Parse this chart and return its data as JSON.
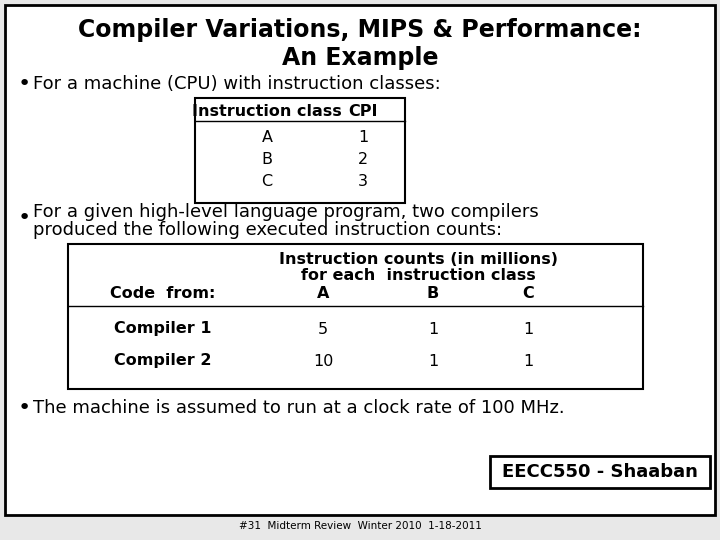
{
  "title_line1": "Compiler Variations, MIPS & Performance:",
  "title_line2": "An Example",
  "bullet1": "For a machine (CPU) with instruction classes:",
  "table1_headers": [
    "Instruction class",
    "CPI"
  ],
  "table1_rows": [
    [
      "A",
      "1"
    ],
    [
      "B",
      "2"
    ],
    [
      "C",
      "3"
    ]
  ],
  "bullet2_line1": "For a given high-level language program, two compilers",
  "bullet2_line2": "produced the following executed instruction counts:",
  "table2_header1": "Instruction counts (in millions)",
  "table2_header2": "for each  instruction class",
  "table2_col_headers": [
    "Code  from:",
    "A",
    "B",
    "C"
  ],
  "table2_rows": [
    [
      "Compiler 1",
      "5",
      "1",
      "1"
    ],
    [
      "Compiler 2",
      "10",
      "1",
      "1"
    ]
  ],
  "bullet3": "The machine is assumed to run at a clock rate of 100 MHz.",
  "footer": "EECC550 - Shaaban",
  "footnote": "#31  Midterm Review  Winter 2010  1-18-2011",
  "bg_color": "#e8e8e8",
  "border_color": "#000000",
  "text_color": "#000000",
  "title_fontsize": 17,
  "body_fontsize": 13,
  "table_fontsize": 11.5,
  "footer_fontsize": 13
}
